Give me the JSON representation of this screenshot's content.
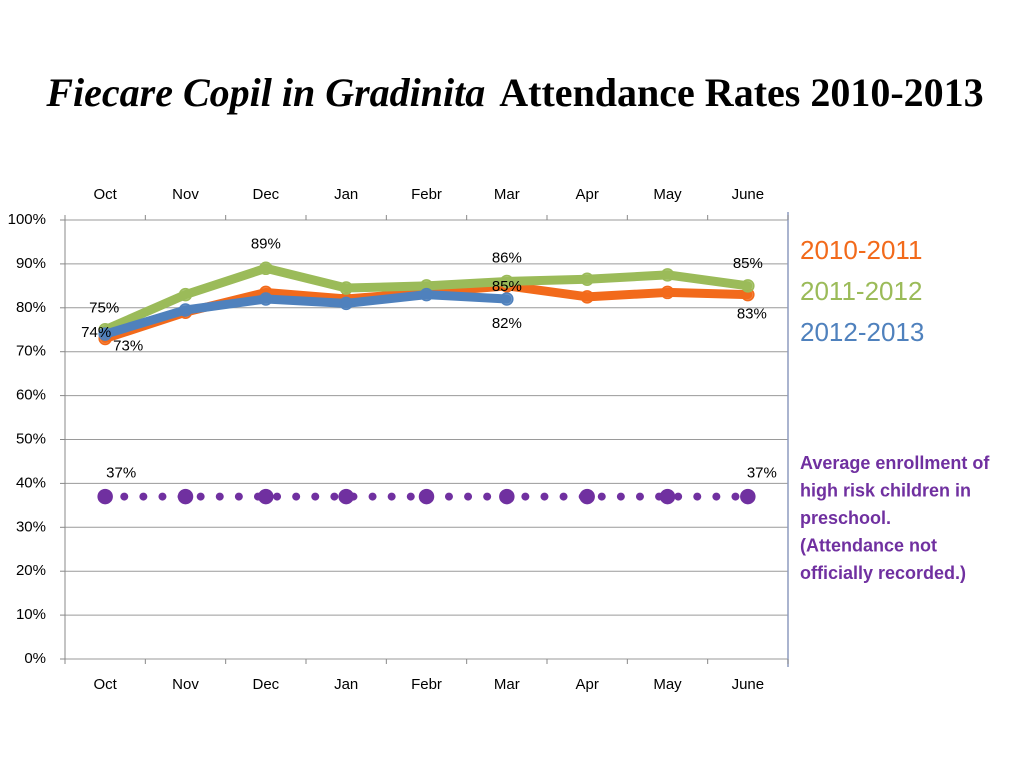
{
  "chart_data": {
    "type": "line",
    "title_parts": [
      "Fiecare Copil in Gradinita",
      "Attendance Rates 2010-2013"
    ],
    "categories": [
      "Oct",
      "Nov",
      "Dec",
      "Jan",
      "Febr",
      "Mar",
      "Apr",
      "May",
      "June"
    ],
    "ylim": [
      0,
      100
    ],
    "yticks": [
      {
        "value": 0,
        "label": "0%"
      },
      {
        "value": 10,
        "label": "10%"
      },
      {
        "value": 20,
        "label": "20%"
      },
      {
        "value": 30,
        "label": "30%"
      },
      {
        "value": 40,
        "label": "40%"
      },
      {
        "value": 50,
        "label": "50%"
      },
      {
        "value": 60,
        "label": "60%"
      },
      {
        "value": 70,
        "label": "70%"
      },
      {
        "value": 80,
        "label": "80%"
      },
      {
        "value": 90,
        "label": "90%"
      },
      {
        "value": 100,
        "label": "100%"
      }
    ],
    "grid": true,
    "series": [
      {
        "name": "2010-2011",
        "color": "#f26a1b",
        "values": [
          73,
          79,
          83.5,
          82,
          83.5,
          85,
          82.5,
          83.5,
          83
        ],
        "value_labels": [
          "73%",
          null,
          null,
          null,
          null,
          "85%",
          null,
          null,
          "83%"
        ]
      },
      {
        "name": "2011-2012",
        "color": "#9bbb59",
        "values": [
          75,
          83,
          89,
          84.5,
          85,
          86,
          86.5,
          87.5,
          85
        ],
        "value_labels": [
          "75%",
          null,
          "89%",
          null,
          null,
          "86%",
          null,
          null,
          "85%"
        ]
      },
      {
        "name": "2012-2013",
        "color": "#4f81bd",
        "values": [
          74,
          79.5,
          82,
          81,
          83,
          82,
          null,
          null,
          null
        ],
        "value_labels": [
          "74%",
          null,
          null,
          null,
          null,
          "82%",
          null,
          null,
          null
        ]
      },
      {
        "color": "#7030a0",
        "style": "dotted",
        "values": [
          37,
          37,
          37,
          37,
          37,
          37,
          37,
          37,
          37
        ],
        "value_labels": [
          "37%",
          null,
          null,
          null,
          null,
          null,
          null,
          null,
          "37%"
        ]
      }
    ],
    "annotation": [
      "Average enrollment of",
      "high risk children in",
      "preschool.",
      "(Attendance not",
      "officially recorded.)"
    ]
  }
}
